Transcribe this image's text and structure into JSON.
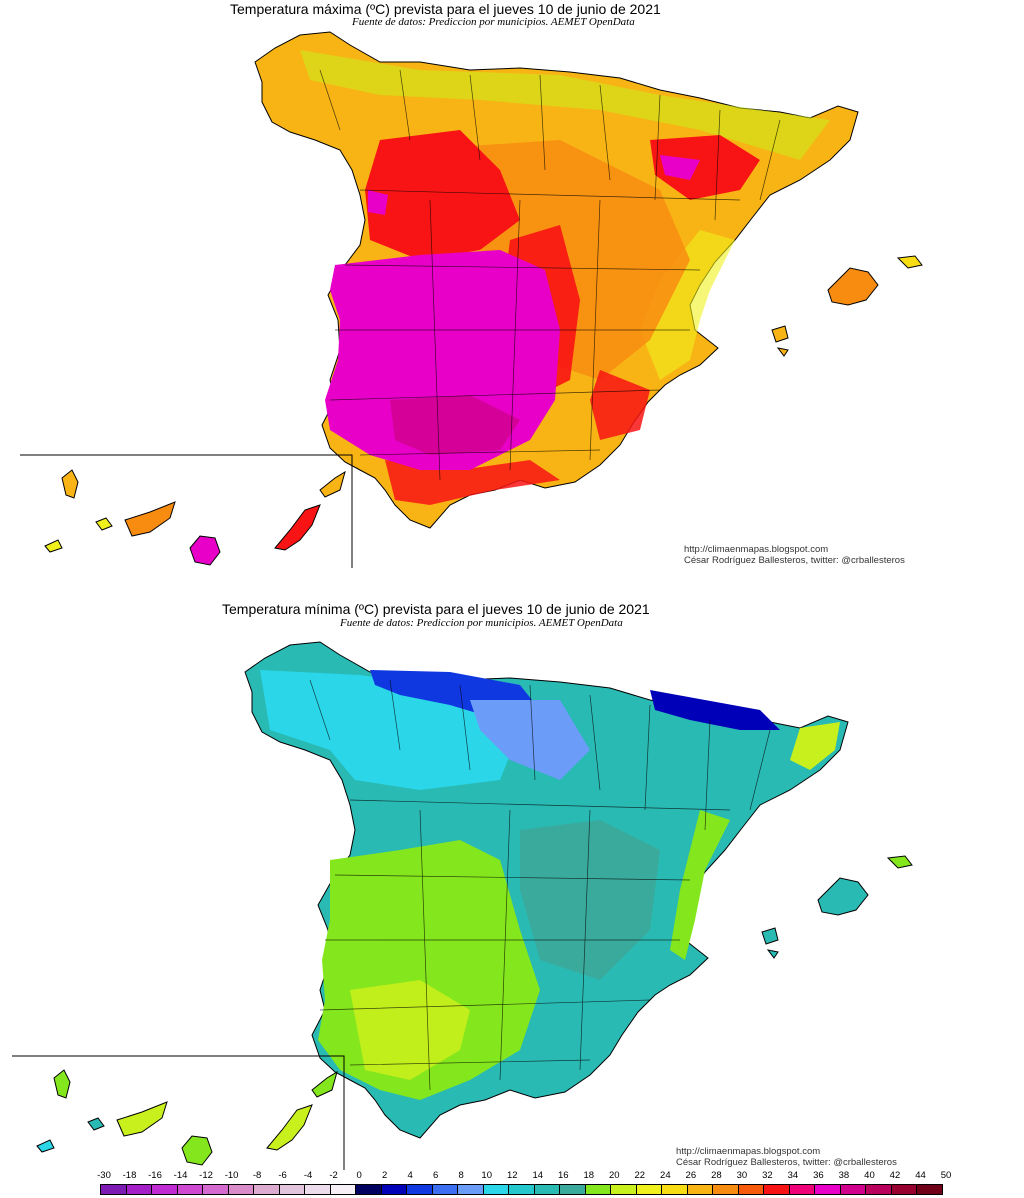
{
  "maps": {
    "max": {
      "title": "Temperatura máxima (ºC) prevista para el jueves 10 de junio de 2021",
      "subtitle": "Fuente de datos: Prediccion por municipios. AEMET OpenData",
      "credit_url": "http://climaenmapas.blogspot.com",
      "credit_author": "César Rodríguez Ballesteros, twitter: @crballesteros"
    },
    "min": {
      "title": "Temperatura mínima (ºC) prevista para el jueves 10 de junio de 2021",
      "subtitle": "Fuente de datos: Prediccion por municipios. AEMET OpenData",
      "credit_url": "http://climaenmapas.blogspot.com",
      "credit_author": "César Rodríguez Ballesteros, twitter: @crballesteros"
    }
  },
  "legend": {
    "labels": [
      "-30",
      "-18",
      "-16",
      "-14",
      "-12",
      "-10",
      "-8",
      "-6",
      "-4",
      "-2",
      "0",
      "2",
      "4",
      "6",
      "8",
      "10",
      "12",
      "14",
      "16",
      "18",
      "20",
      "22",
      "24",
      "26",
      "28",
      "30",
      "32",
      "34",
      "36",
      "38",
      "40",
      "42",
      "44",
      "50"
    ],
    "colors": [
      "#7d1ab4",
      "#a51fc8",
      "#c02ad2",
      "#cf48d2",
      "#d46ad0",
      "#d98cc9",
      "#ddaad0",
      "#e3c4dd",
      "#ecdcec",
      "#f6f0f6",
      "#000060",
      "#0000b8",
      "#1038e0",
      "#3b6ef0",
      "#6a9cf8",
      "#2ad6e8",
      "#24c8cc",
      "#2abab4",
      "#3aaa9c",
      "#84e61c",
      "#c8f01c",
      "#f0f01c",
      "#f8dc14",
      "#f8b414",
      "#f88c10",
      "#f85a0c",
      "#f81414",
      "#f00078",
      "#e800c8",
      "#d0008c",
      "#b8005c",
      "#980030",
      "#700018"
    ]
  }
}
